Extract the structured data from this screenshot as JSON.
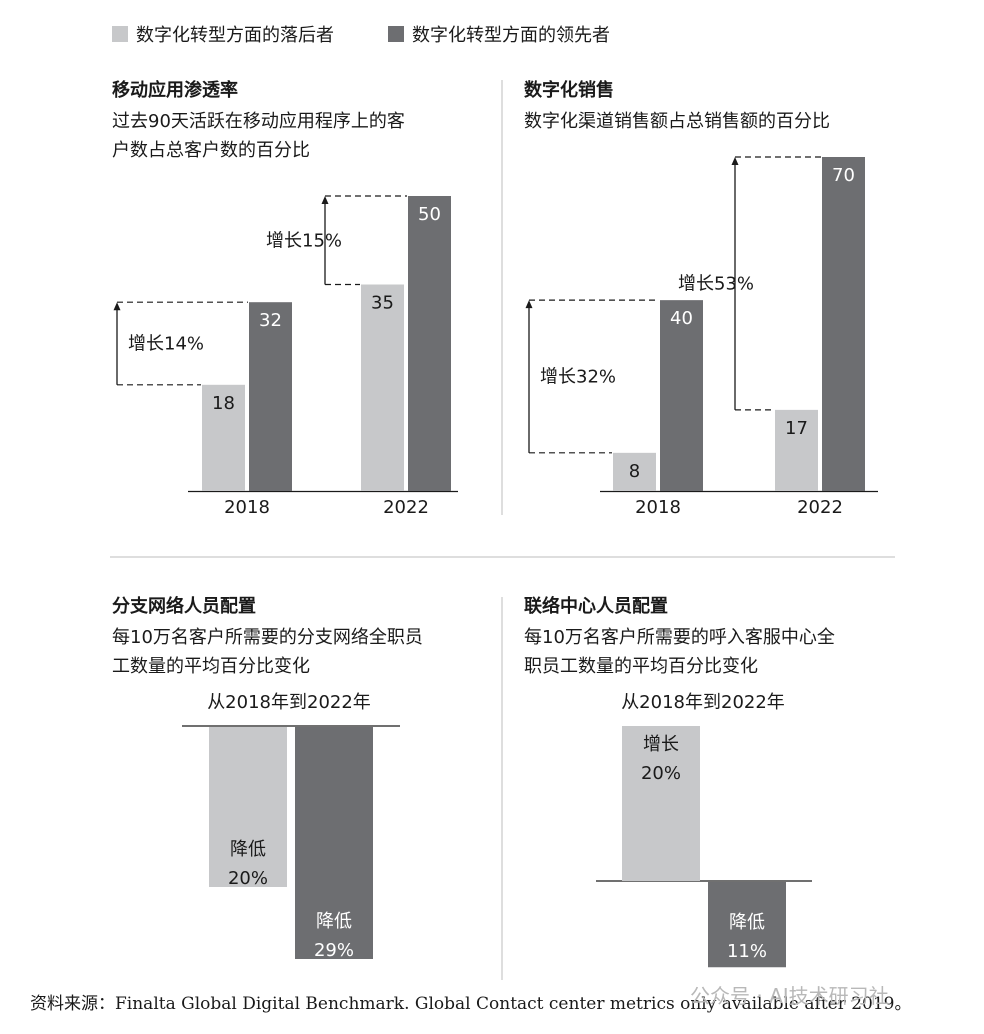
{
  "legend": {
    "laggard": "数字化转型方面的落后者",
    "leader": "数字化转型方面的领先者"
  },
  "colors": {
    "laggard": "#c7c8ca",
    "leader": "#6d6e71"
  },
  "chart_data": [
    {
      "type": "bar",
      "title": "移动应用渗透率",
      "subtitle_lines": [
        "过去90天活跃在移动应用程序上的客",
        "户数占总客户数的百分比"
      ],
      "categories": [
        "2018",
        "2022"
      ],
      "series": [
        {
          "name": "数字化转型方面的落后者",
          "values": [
            18,
            35
          ]
        },
        {
          "name": "数字化转型方面的领先者",
          "values": [
            32,
            50
          ]
        }
      ],
      "annotations": [
        "增长14%",
        "增长15%"
      ],
      "ylim": [
        0,
        50
      ]
    },
    {
      "type": "bar",
      "title": "数字化销售",
      "subtitle_lines": [
        "数字化渠道销售额占总销售额的百分比"
      ],
      "categories": [
        "2018",
        "2022"
      ],
      "series": [
        {
          "name": "数字化转型方面的落后者",
          "values": [
            8,
            17
          ]
        },
        {
          "name": "数字化转型方面的领先者",
          "values": [
            40,
            70
          ]
        }
      ],
      "annotations": [
        "增长32%",
        "增长53%"
      ],
      "ylim": [
        0,
        70
      ]
    },
    {
      "type": "bar",
      "title": "分支网络人员配置",
      "subtitle_lines": [
        "每10万名客户所需要的分支网络全职员",
        "工数量的平均百分比变化"
      ],
      "period": "从2018年到2022年",
      "series": [
        {
          "name": "数字化转型方面的落后者",
          "value": -20,
          "label_lines": [
            "降低",
            "20%"
          ]
        },
        {
          "name": "数字化转型方面的领先者",
          "value": -29,
          "label_lines": [
            "降低",
            "29%"
          ]
        }
      ]
    },
    {
      "type": "bar",
      "title": "联络中心人员配置",
      "subtitle_lines": [
        "每10万名客户所需要的呼入客服中心全",
        "职员工数量的平均百分比变化"
      ],
      "period": "从2018年到2022年",
      "series": [
        {
          "name": "数字化转型方面的落后者",
          "value": 20,
          "label_lines": [
            "增长",
            "20%"
          ]
        },
        {
          "name": "数字化转型方面的领先者",
          "value": -11,
          "label_lines": [
            "降低",
            "11%"
          ]
        }
      ]
    }
  ],
  "source": "资料来源：Finalta Global Digital Benchmark. Global Contact center metrics only available after 2019。",
  "watermark": "公众号 · AI技术研习社"
}
